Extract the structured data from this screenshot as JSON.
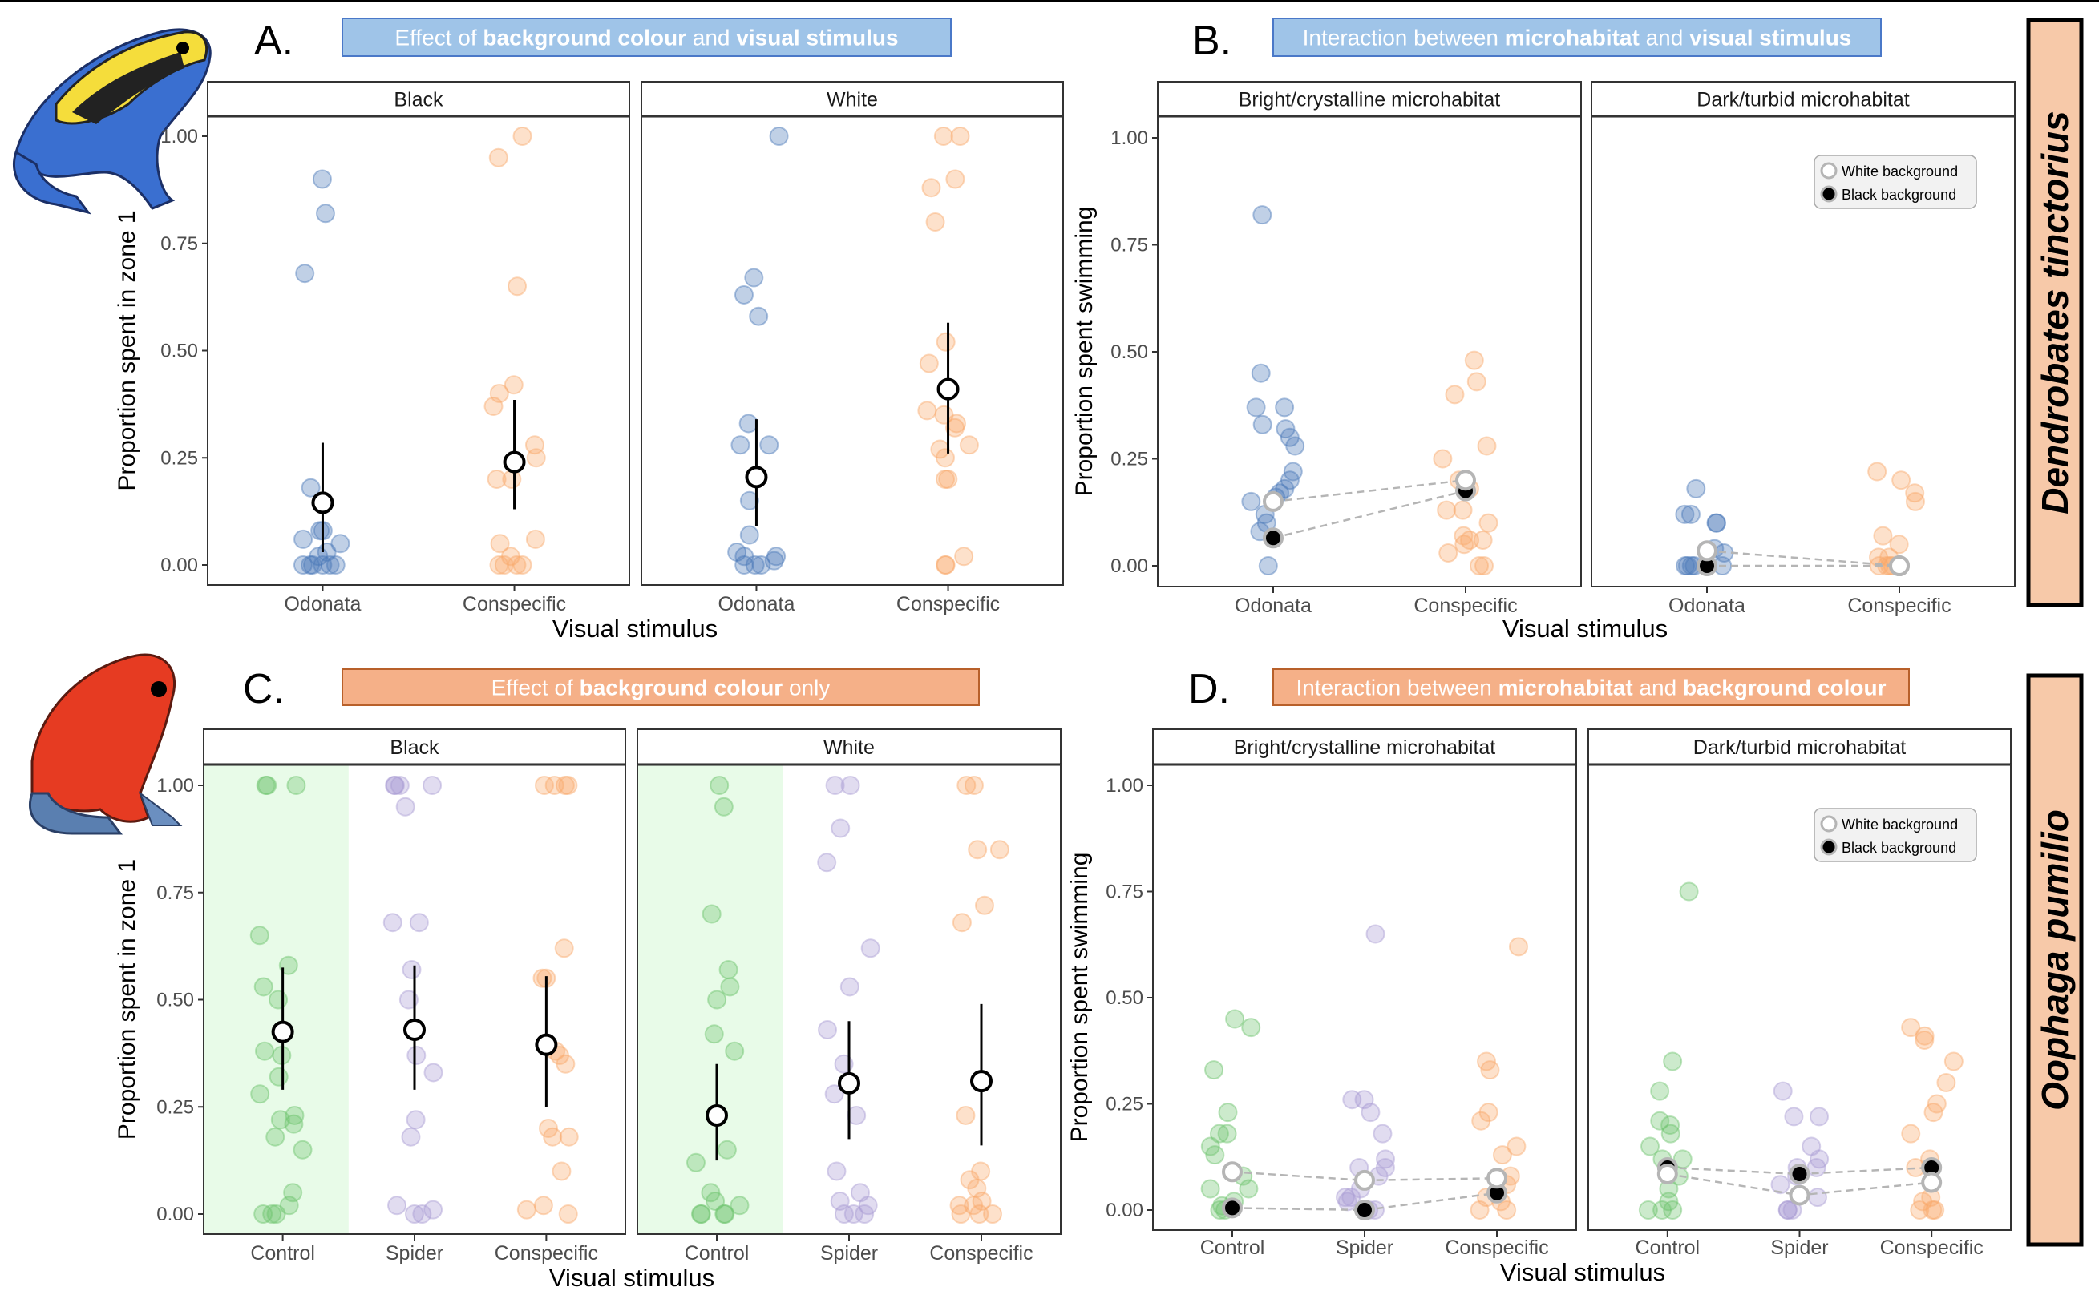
{
  "species": [
    "Dendrobates tinctorius",
    "Oophaga pumilio"
  ],
  "colors": {
    "Odonata": "#4a78b8",
    "Conspecific": "#f9a86a",
    "Control": "#6cc36c",
    "Spider": "#a99bd3",
    "blue_title": "#9fc4e8",
    "orange_title": "#f5b088",
    "species_box": "#f7c9a9",
    "control_shade": "#e8fbe8"
  },
  "chart_data": [
    {
      "type": "scatter",
      "panel": "A.",
      "title": [
        {
          "text": "Effect of ",
          "bold": false
        },
        {
          "text": "background colour",
          "bold": true
        },
        {
          "text": " and ",
          "bold": false
        },
        {
          "text": "visual stimulus",
          "bold": true
        }
      ],
      "title_color": "blue",
      "ylabel": "Proportion spent in zone 1",
      "xlabel": "Visual stimulus",
      "ylim": [
        0,
        1
      ],
      "yticks": [
        "0.00",
        "0.25",
        "0.50",
        "0.75",
        "1.00"
      ],
      "facets": [
        {
          "label": "Black",
          "groups": [
            {
              "name": "Odonata",
              "points": [
                0.9,
                0.82,
                0.68,
                0.18,
                0.08,
                0.08,
                0.06,
                0.05,
                0.03,
                0.02,
                0,
                0,
                0,
                0,
                0,
                0
              ],
              "mean": 0.145,
              "ci": [
                0.03,
                0.285
              ]
            },
            {
              "name": "Conspecific",
              "points": [
                1.0,
                0.95,
                0.65,
                0.42,
                0.4,
                0.37,
                0.28,
                0.25,
                0.2,
                0.2,
                0.06,
                0.05,
                0.02,
                0,
                0,
                0,
                0
              ],
              "mean": 0.24,
              "ci": [
                0.13,
                0.385
              ]
            }
          ]
        },
        {
          "label": "White",
          "groups": [
            {
              "name": "Odonata",
              "points": [
                1.0,
                0.67,
                0.63,
                0.58,
                0.33,
                0.28,
                0.28,
                0.15,
                0.07,
                0.03,
                0.02,
                0.02,
                0.01,
                0,
                0,
                0
              ],
              "mean": 0.205,
              "ci": [
                0.09,
                0.34
              ]
            },
            {
              "name": "Conspecific",
              "points": [
                1.0,
                1.0,
                0.9,
                0.88,
                0.8,
                0.52,
                0.47,
                0.36,
                0.35,
                0.33,
                0.32,
                0.28,
                0.27,
                0.25,
                0.2,
                0.2,
                0.02,
                0,
                0
              ],
              "mean": 0.41,
              "ci": [
                0.26,
                0.565
              ]
            }
          ]
        }
      ]
    },
    {
      "type": "scatter",
      "panel": "B.",
      "title": [
        {
          "text": "Interaction between ",
          "bold": false
        },
        {
          "text": "microhabitat",
          "bold": true
        },
        {
          "text": " and ",
          "bold": false
        },
        {
          "text": "visual stimulus",
          "bold": true
        }
      ],
      "title_color": "blue",
      "ylabel": "Proportion spent swimming",
      "xlabel": "Visual stimulus",
      "ylim": [
        0,
        1
      ],
      "yticks": [
        "0.00",
        "0.25",
        "0.50",
        "0.75",
        "1.00"
      ],
      "legend": {
        "white": "White background",
        "black": "Black background",
        "position": "top-right"
      },
      "facets": [
        {
          "label": "Bright/crystalline microhabitat",
          "groups": [
            {
              "name": "Odonata",
              "points": [
                0.82,
                0.45,
                0.37,
                0.37,
                0.33,
                0.32,
                0.3,
                0.28,
                0.22,
                0.2,
                0.18,
                0.17,
                0.16,
                0.15,
                0.12,
                0.1,
                0.08,
                0
              ],
              "white_mean": 0.15,
              "black_mean": 0.065
            },
            {
              "name": "Conspecific",
              "points": [
                0.48,
                0.43,
                0.4,
                0.28,
                0.25,
                0.2,
                0.18,
                0.13,
                0.13,
                0.1,
                0.07,
                0.06,
                0.06,
                0.05,
                0.03,
                0,
                0
              ],
              "white_mean": 0.2,
              "black_mean": 0.175
            }
          ]
        },
        {
          "label": "Dark/turbid microhabitat",
          "groups": [
            {
              "name": "Odonata",
              "points": [
                0.18,
                0.12,
                0.12,
                0.1,
                0.1,
                0.04,
                0.03,
                0,
                0,
                0,
                0,
                0
              ],
              "white_mean": 0.035,
              "black_mean": 0.0
            },
            {
              "name": "Conspecific",
              "points": [
                0.22,
                0.2,
                0.17,
                0.15,
                0.07,
                0.05,
                0.02,
                0.02,
                0,
                0,
                0,
                0,
                0
              ],
              "white_mean": 0.0,
              "black_mean": 0.0
            }
          ]
        }
      ]
    },
    {
      "type": "scatter",
      "panel": "C.",
      "title": [
        {
          "text": "Effect of ",
          "bold": false
        },
        {
          "text": "background colour",
          "bold": true
        },
        {
          "text": " only",
          "bold": false
        }
      ],
      "title_color": "orange",
      "ylabel": "Proportion spent in zone 1",
      "xlabel": "Visual stimulus",
      "ylim": [
        0,
        1
      ],
      "yticks": [
        "0.00",
        "0.25",
        "0.50",
        "0.75",
        "1.00"
      ],
      "shaded_group": "Control",
      "facets": [
        {
          "label": "Black",
          "groups": [
            {
              "name": "Control",
              "points": [
                1,
                1,
                1,
                0.65,
                0.58,
                0.53,
                0.5,
                0.38,
                0.37,
                0.32,
                0.28,
                0.23,
                0.22,
                0.21,
                0.18,
                0.15,
                0.05,
                0.02,
                0,
                0,
                0
              ],
              "mean": 0.425,
              "ci": [
                0.29,
                0.575
              ]
            },
            {
              "name": "Spider",
              "points": [
                1,
                1,
                1,
                1,
                0.95,
                0.68,
                0.68,
                0.57,
                0.5,
                0.37,
                0.33,
                0.22,
                0.18,
                0.02,
                0.01,
                0,
                0
              ],
              "mean": 0.43,
              "ci": [
                0.29,
                0.58
              ]
            },
            {
              "name": "Conspecific",
              "points": [
                1,
                1,
                1,
                1,
                0.62,
                0.55,
                0.55,
                0.38,
                0.37,
                0.35,
                0.2,
                0.18,
                0.18,
                0.1,
                0.02,
                0.01,
                0
              ],
              "mean": 0.395,
              "ci": [
                0.25,
                0.555
              ]
            }
          ]
        },
        {
          "label": "White",
          "groups": [
            {
              "name": "Control",
              "points": [
                1,
                0.95,
                0.7,
                0.57,
                0.53,
                0.5,
                0.42,
                0.38,
                0.15,
                0.12,
                0.05,
                0.03,
                0.02,
                0,
                0,
                0,
                0
              ],
              "mean": 0.23,
              "ci": [
                0.125,
                0.35
              ]
            },
            {
              "name": "Spider",
              "points": [
                1,
                1,
                0.9,
                0.82,
                0.62,
                0.53,
                0.43,
                0.35,
                0.28,
                0.23,
                0.1,
                0.05,
                0.03,
                0.02,
                0,
                0,
                0
              ],
              "mean": 0.305,
              "ci": [
                0.175,
                0.45
              ]
            },
            {
              "name": "Conspecific",
              "points": [
                1,
                1,
                0.85,
                0.85,
                0.72,
                0.68,
                0.23,
                0.1,
                0.08,
                0.06,
                0.03,
                0.02,
                0.02,
                0,
                0,
                0
              ],
              "mean": 0.31,
              "ci": [
                0.16,
                0.49
              ]
            }
          ]
        }
      ]
    },
    {
      "type": "scatter",
      "panel": "D.",
      "title": [
        {
          "text": "Interaction between ",
          "bold": false
        },
        {
          "text": "microhabitat",
          "bold": true
        },
        {
          "text": " and ",
          "bold": false
        },
        {
          "text": "background colour",
          "bold": true
        }
      ],
      "title_color": "orange",
      "ylabel": "Proportion spent swimming",
      "xlabel": "Visual stimulus",
      "ylim": [
        0,
        1
      ],
      "yticks": [
        "0.00",
        "0.25",
        "0.50",
        "0.75",
        "1.00"
      ],
      "legend": {
        "white": "White background",
        "black": "Black background",
        "position": "top-right"
      },
      "facets": [
        {
          "label": "Bright/crystalline microhabitat",
          "groups": [
            {
              "name": "Control",
              "points": [
                0.45,
                0.43,
                0.33,
                0.23,
                0.18,
                0.18,
                0.15,
                0.13,
                0.08,
                0.05,
                0.05,
                0.02,
                0.01,
                0,
                0
              ],
              "white_mean": 0.09,
              "black_mean": 0.005
            },
            {
              "name": "Spider",
              "points": [
                0.65,
                0.26,
                0.26,
                0.23,
                0.18,
                0.12,
                0.1,
                0.1,
                0.08,
                0.05,
                0.03,
                0.03,
                0.02,
                0,
                0
              ],
              "white_mean": 0.07,
              "black_mean": 0.0
            },
            {
              "name": "Conspecific",
              "points": [
                0.62,
                0.35,
                0.33,
                0.23,
                0.21,
                0.15,
                0.13,
                0.08,
                0.06,
                0.03,
                0.02,
                0,
                0
              ],
              "white_mean": 0.075,
              "black_mean": 0.04
            }
          ]
        },
        {
          "label": "Dark/turbid microhabitat",
          "groups": [
            {
              "name": "Control",
              "points": [
                0.75,
                0.35,
                0.28,
                0.21,
                0.2,
                0.18,
                0.15,
                0.12,
                0.12,
                0.08,
                0.05,
                0.02,
                0,
                0,
                0
              ],
              "white_mean": 0.085,
              "black_mean": 0.1
            },
            {
              "name": "Spider",
              "points": [
                0.28,
                0.22,
                0.22,
                0.15,
                0.12,
                0.1,
                0.1,
                0.08,
                0.06,
                0.03,
                0,
                0,
                0
              ],
              "white_mean": 0.035,
              "black_mean": 0.085
            },
            {
              "name": "Conspecific",
              "points": [
                0.43,
                0.41,
                0.4,
                0.35,
                0.3,
                0.25,
                0.23,
                0.18,
                0.12,
                0.1,
                0.03,
                0.02,
                0,
                0,
                0
              ],
              "white_mean": 0.065,
              "black_mean": 0.1
            }
          ]
        }
      ]
    }
  ]
}
